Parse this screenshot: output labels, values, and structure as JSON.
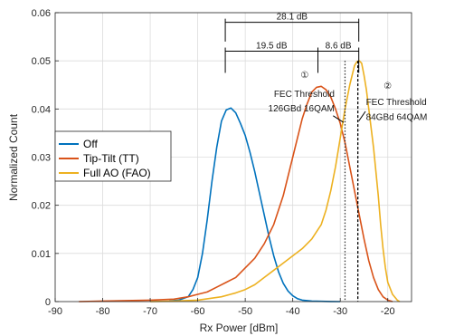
{
  "chart_data": {
    "type": "line",
    "xlabel": "Rx Power [dBm]",
    "ylabel": "Normalized Count",
    "xlim": [
      -90,
      -15
    ],
    "ylim": [
      0,
      0.06
    ],
    "xticks": [
      -90,
      -80,
      -70,
      -60,
      -50,
      -40,
      -30,
      -20
    ],
    "yticks": [
      0,
      0.01,
      0.02,
      0.03,
      0.04,
      0.05,
      0.06
    ],
    "xtick_labels": [
      "-90",
      "-80",
      "-70",
      "-60",
      "-50",
      "-40",
      "-30",
      "-20"
    ],
    "ytick_labels": [
      "0",
      "0.01",
      "0.02",
      "0.03",
      "0.04",
      "0.05",
      "0.06"
    ],
    "grid": true,
    "legend_position": "middle-left",
    "series": [
      {
        "name": "Off",
        "color": "#0072BD",
        "x": [
          -66,
          -64,
          -62,
          -61,
          -60,
          -59,
          -58,
          -57,
          -56,
          -55,
          -54,
          -53,
          -52,
          -51,
          -50,
          -49,
          -48,
          -47,
          -46,
          -45,
          -44,
          -43,
          -42,
          -41,
          -40,
          -39,
          -38,
          -37,
          -36,
          -34,
          -32,
          -30
        ],
        "y": [
          0.0001,
          0.0003,
          0.001,
          0.0025,
          0.005,
          0.01,
          0.017,
          0.025,
          0.032,
          0.0375,
          0.0398,
          0.0402,
          0.0392,
          0.037,
          0.0345,
          0.031,
          0.027,
          0.0225,
          0.018,
          0.0135,
          0.0095,
          0.0062,
          0.0038,
          0.0022,
          0.0012,
          0.0006,
          0.0003,
          0.0002,
          0.0001,
          5e-05,
          2e-05,
          0
        ]
      },
      {
        "name": "Tip-Tilt (TT)",
        "color": "#D95319",
        "x": [
          -85,
          -80,
          -75,
          -70,
          -65,
          -62,
          -60,
          -58,
          -56,
          -54,
          -52,
          -50,
          -48,
          -46,
          -44,
          -42,
          -40,
          -38,
          -37,
          -36,
          -35,
          -34,
          -33,
          -32,
          -31,
          -30,
          -29,
          -28,
          -27,
          -26,
          -25,
          -24,
          -23,
          -22,
          -21,
          -20,
          -19
        ],
        "y": [
          0,
          0.0001,
          0.0002,
          0.0003,
          0.0005,
          0.001,
          0.0015,
          0.002,
          0.003,
          0.004,
          0.005,
          0.007,
          0.009,
          0.012,
          0.016,
          0.022,
          0.03,
          0.038,
          0.041,
          0.0435,
          0.0445,
          0.0447,
          0.044,
          0.0425,
          0.04,
          0.037,
          0.033,
          0.028,
          0.023,
          0.018,
          0.013,
          0.0085,
          0.005,
          0.0025,
          0.001,
          0.0003,
          0
        ]
      },
      {
        "name": "Full AO (FAO)",
        "color": "#EDB120",
        "x": [
          -70,
          -65,
          -60,
          -55,
          -52,
          -50,
          -48,
          -46,
          -44,
          -42,
          -40,
          -38,
          -36,
          -34,
          -33,
          -32,
          -31,
          -30,
          -29,
          -28,
          -27.5,
          -27,
          -26.5,
          -26,
          -25.5,
          -25,
          -24.5,
          -24,
          -23.5,
          -23,
          -22.5,
          -22,
          -21.5,
          -21,
          -20.5,
          -20,
          -19,
          -18,
          -17.5
        ],
        "y": [
          0,
          0.0001,
          0.0003,
          0.001,
          0.0018,
          0.0025,
          0.0035,
          0.005,
          0.0065,
          0.008,
          0.0095,
          0.011,
          0.013,
          0.016,
          0.019,
          0.023,
          0.028,
          0.034,
          0.04,
          0.045,
          0.047,
          0.049,
          0.0498,
          0.05,
          0.0495,
          0.047,
          0.044,
          0.04,
          0.036,
          0.032,
          0.027,
          0.022,
          0.016,
          0.011,
          0.007,
          0.004,
          0.0015,
          0.0003,
          0
        ]
      }
    ],
    "annotations": {
      "thresholds": [
        {
          "x": -29,
          "style": "dotted",
          "color": "#333333"
        },
        {
          "x": -26.3,
          "style": "dashed",
          "color": "#000000"
        }
      ],
      "dimension_lines": [
        {
          "label": "28.1 dB",
          "x_from": -54.2,
          "x_to": -26.1,
          "y": 0.058,
          "tick_bottom": 0.054
        },
        {
          "label": "19.5 dB",
          "x_from": -54.2,
          "x_to": -34.7,
          "y": 0.052,
          "tick_bottom": 0.0475
        },
        {
          "label": "8.6 dB",
          "x_from": -34.7,
          "x_to": -26.1,
          "y": 0.052,
          "tick_bottom": 0.0475
        }
      ],
      "callouts": [
        {
          "marker": "①",
          "line1": "FEC Threshold",
          "line2": "126GBd 16QAM",
          "anchor": "end",
          "text_x": -31.2,
          "marker_y": 0.0465,
          "line1_y": 0.0425,
          "line2_y": 0.0395,
          "pointer": {
            "x1": -31.5,
            "y1": 0.0386,
            "x2": -29.3,
            "y2": 0.0372
          }
        },
        {
          "marker": "②",
          "line1": "FEC Threshold",
          "line2": "84GBd 64QAM",
          "anchor": "start",
          "text_x": -24.6,
          "marker_y": 0.0442,
          "line1_y": 0.0408,
          "line2_y": 0.0377,
          "pointer": {
            "x1": -24.7,
            "y1": 0.0395,
            "x2": -26.1,
            "y2": 0.0375
          }
        }
      ]
    }
  }
}
